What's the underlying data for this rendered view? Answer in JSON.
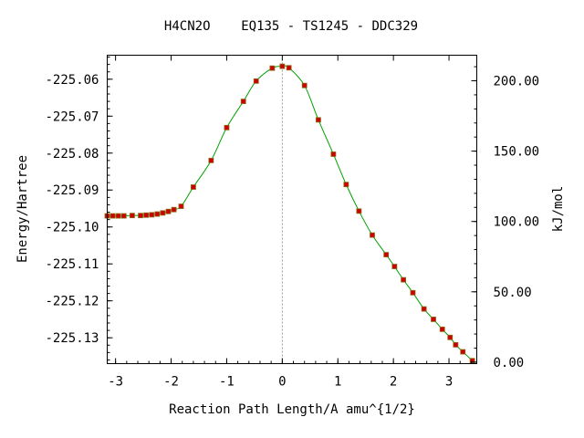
{
  "chart_data": {
    "type": "line",
    "title": "H4CN2O    EQ135 - TS1245 - DDC329",
    "xlabel": "Reaction Path Length/A amu^{1/2}",
    "ylabel": "Energy/Hartree",
    "y2label": "kJ/mol",
    "xlim": [
      -3.15,
      3.5
    ],
    "ylim": [
      -225.137,
      -225.0535
    ],
    "xticks": [
      {
        "value": -3,
        "label": "-3"
      },
      {
        "value": -2,
        "label": "-2"
      },
      {
        "value": -1,
        "label": "-1"
      },
      {
        "value": 0,
        "label": "0"
      },
      {
        "value": 1,
        "label": "1"
      },
      {
        "value": 2,
        "label": "2"
      },
      {
        "value": 3,
        "label": "3"
      }
    ],
    "yticks": [
      {
        "value": -225.06,
        "label": "-225.06"
      },
      {
        "value": -225.07,
        "label": "-225.07"
      },
      {
        "value": -225.08,
        "label": "-225.08"
      },
      {
        "value": -225.09,
        "label": "-225.09"
      },
      {
        "value": -225.1,
        "label": "-225.10"
      },
      {
        "value": -225.11,
        "label": "-225.11"
      },
      {
        "value": -225.12,
        "label": "-225.12"
      },
      {
        "value": -225.13,
        "label": "-225.13"
      }
    ],
    "y2_zero_hartree": -225.1366,
    "y2_per_hartree": 2625.5,
    "y2ticks": [
      {
        "value": 0,
        "label": "0.00"
      },
      {
        "value": 50,
        "label": "50.00"
      },
      {
        "value": 100,
        "label": "100.00"
      },
      {
        "value": 150,
        "label": "150.00"
      },
      {
        "value": 200,
        "label": "200.00"
      }
    ],
    "ts_x": 0,
    "grid": false,
    "colors": {
      "line": "#00a000",
      "marker": "#cc0000",
      "marker_edge": "#8b6914",
      "dashed": "#9a9a9a"
    },
    "series": [
      {
        "x": [
          -3.15,
          -3.05,
          -2.95,
          -2.85,
          -2.7,
          -2.55,
          -2.45,
          -2.35,
          -2.25,
          -2.15,
          -2.05,
          -1.95,
          -1.82,
          -1.6,
          -1.28,
          -1.0,
          -0.7,
          -0.47,
          -0.18,
          0.0,
          0.12,
          0.4,
          0.65,
          0.92,
          1.15,
          1.38,
          1.62,
          1.87,
          2.02,
          2.18,
          2.35,
          2.55,
          2.72,
          2.88,
          3.02,
          3.12,
          3.25,
          3.42
        ],
        "y": [
          -225.097,
          -225.097,
          -225.097,
          -225.097,
          -225.0969,
          -225.0969,
          -225.0968,
          -225.0967,
          -225.0965,
          -225.0962,
          -225.0958,
          -225.0953,
          -225.0944,
          -225.0892,
          -225.082,
          -225.0731,
          -225.066,
          -225.0605,
          -225.057,
          -225.0565,
          -225.0569,
          -225.0617,
          -225.071,
          -225.0803,
          -225.0885,
          -225.0957,
          -225.1022,
          -225.1075,
          -225.1107,
          -225.1143,
          -225.1178,
          -225.1222,
          -225.125,
          -225.1277,
          -225.1299,
          -225.1319,
          -225.1338,
          -225.1362
        ]
      }
    ]
  }
}
